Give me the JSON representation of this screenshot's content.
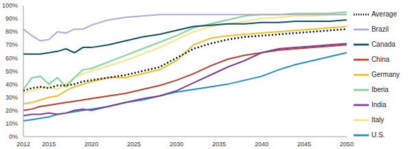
{
  "chart_data": {
    "type": "line",
    "x": [
      2012,
      2013,
      2014,
      2015,
      2016,
      2017,
      2018,
      2019,
      2020,
      2022,
      2024,
      2026,
      2028,
      2030,
      2032,
      2034,
      2036,
      2038,
      2040,
      2042,
      2044,
      2046,
      2048,
      2050
    ],
    "xlim": [
      2012,
      2050
    ],
    "xticks": [
      2012,
      2015,
      2020,
      2025,
      2030,
      2035,
      2040,
      2045,
      2050
    ],
    "ylim": [
      0,
      100
    ],
    "yticks": [
      {
        "value": 0,
        "label": "0%"
      },
      {
        "value": 10,
        "label": "10%"
      },
      {
        "value": 20,
        "label": "20%"
      },
      {
        "value": 30,
        "label": "30%"
      },
      {
        "value": 40,
        "label": "40%"
      },
      {
        "value": 50,
        "label": "50%"
      },
      {
        "value": 60,
        "label": "60%"
      },
      {
        "value": 70,
        "label": "70%"
      },
      {
        "value": 80,
        "label": "80%"
      },
      {
        "value": 90,
        "label": "90%"
      },
      {
        "value": 100,
        "label": "100%"
      }
    ],
    "grid": false,
    "legend": "right",
    "series": [
      {
        "name": "Germany",
        "color": "#f5bf1a",
        "values": [
          25,
          26,
          28,
          30,
          31,
          35,
          38,
          40,
          42,
          45,
          45,
          48,
          51,
          58,
          70,
          75,
          77,
          78,
          79,
          80,
          81,
          82,
          83,
          84
        ]
      },
      {
        "name": "Italy",
        "color": "#fbe37f",
        "values": [
          33,
          35,
          37,
          38,
          36,
          40,
          45,
          48,
          50,
          54,
          58,
          63,
          68,
          74,
          80,
          84,
          86,
          88,
          90,
          91,
          92,
          92,
          93,
          93
        ]
      },
      {
        "name": "Iberia",
        "color": "#78d894",
        "values": [
          36,
          45,
          46,
          40,
          45,
          38,
          45,
          51,
          52,
          57,
          62,
          67,
          72,
          77,
          83,
          86,
          89,
          92,
          93,
          93,
          94,
          94,
          94,
          95
        ]
      },
      {
        "name": "U.S.",
        "color": "#1b8fd2",
        "values": [
          12,
          13,
          14,
          15,
          17,
          18,
          19,
          20,
          21,
          23,
          26,
          28,
          31,
          34,
          36,
          38,
          40,
          43,
          46,
          51,
          55,
          58,
          61,
          64
        ]
      },
      {
        "name": "Canada",
        "color": "#0e4f68",
        "values": [
          63,
          63,
          63,
          64,
          65,
          67,
          64,
          68,
          68,
          70,
          73,
          76,
          78,
          81,
          84,
          85,
          86,
          86,
          87,
          87,
          88,
          88,
          88,
          89
        ]
      },
      {
        "name": "Brazil",
        "color": "#b6a6d8",
        "values": [
          82,
          77,
          73,
          74,
          80,
          79,
          82,
          82,
          85,
          89,
          91,
          92,
          93,
          93,
          93,
          93,
          93,
          93,
          93,
          93,
          93,
          93,
          93,
          93
        ]
      },
      {
        "name": "China",
        "color": "#c43a2c",
        "values": [
          20,
          21,
          23,
          24,
          25,
          26,
          27,
          28,
          29,
          31,
          33,
          36,
          39,
          43,
          48,
          54,
          59,
          62,
          64,
          66,
          67,
          68,
          69,
          70
        ]
      },
      {
        "name": "India",
        "color": "#7b3c98",
        "values": [
          16,
          17,
          17,
          18,
          17,
          18,
          20,
          21,
          20,
          23,
          26,
          29,
          31,
          35,
          41,
          47,
          53,
          58,
          64,
          67,
          68,
          69,
          70,
          71
        ]
      },
      {
        "name": "Average",
        "color": "#000000",
        "line_style": "dotted",
        "values": [
          35,
          37,
          38,
          37,
          39,
          39,
          40,
          42,
          43,
          45,
          47,
          50,
          53,
          60,
          67,
          71,
          74,
          76,
          77,
          78,
          79,
          80,
          81,
          82
        ]
      }
    ]
  }
}
